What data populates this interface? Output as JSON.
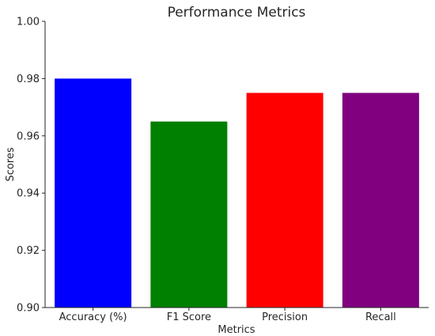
{
  "chart_data": {
    "type": "bar",
    "title": "Performance Metrics",
    "xlabel": "Metrics",
    "ylabel": "Scores",
    "categories": [
      "Accuracy (%)",
      "F1 Score",
      "Precision",
      "Recall"
    ],
    "values": [
      0.98,
      0.965,
      0.975,
      0.975
    ],
    "colors": [
      "#0000ff",
      "#008000",
      "#ff0000",
      "#800080"
    ],
    "ylim": [
      0.9,
      1.0
    ],
    "yticks": [
      "0.90",
      "0.92",
      "0.94",
      "0.96",
      "0.98",
      "1.00"
    ],
    "grid": false,
    "legend": "none"
  }
}
